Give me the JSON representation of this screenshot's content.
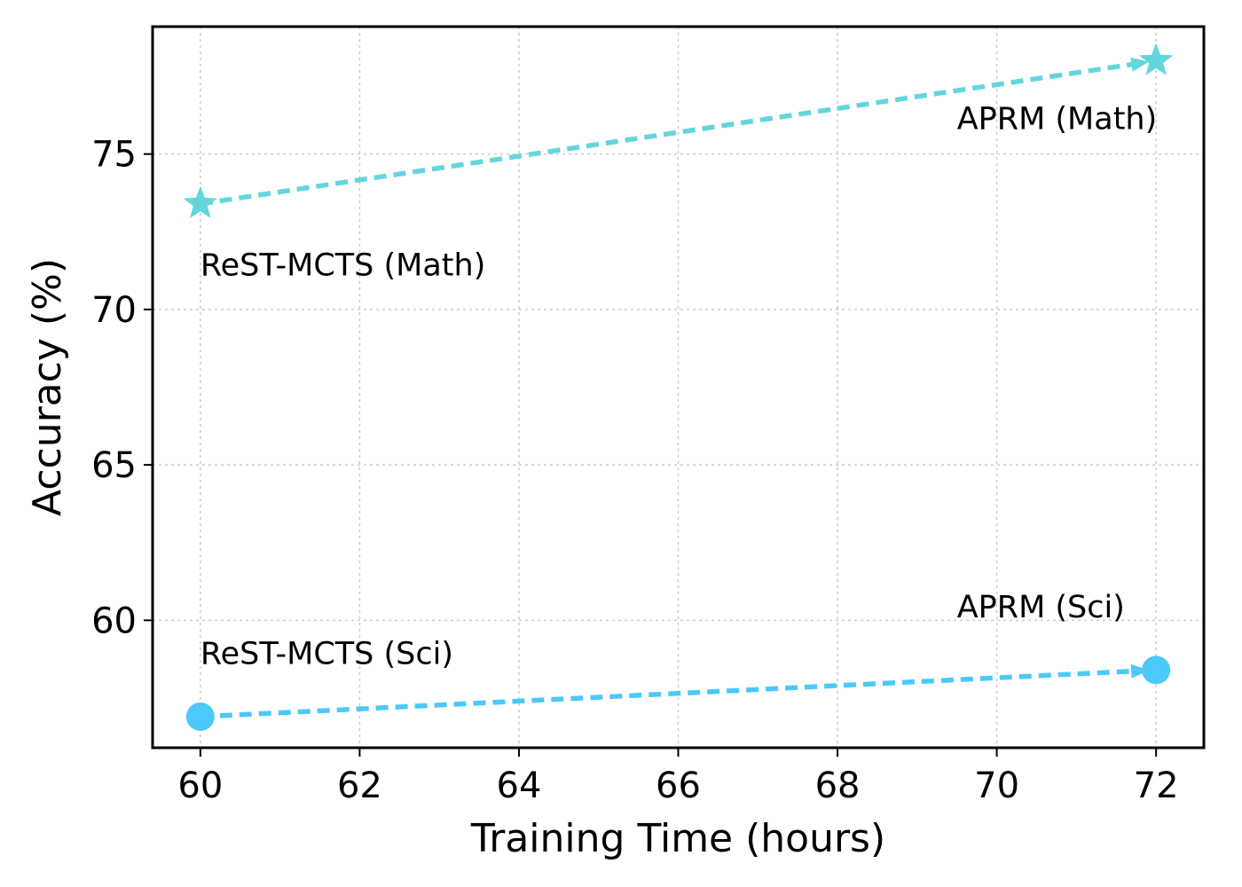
{
  "chart_data": {
    "type": "scatter",
    "title": "",
    "xlabel": "Training Time (hours)",
    "ylabel": "Accuracy (%)",
    "xlim": [
      59.4,
      72.6
    ],
    "ylim": [
      55.9,
      79.1
    ],
    "xticks": [
      60,
      62,
      64,
      66,
      68,
      70,
      72
    ],
    "yticks": [
      60,
      65,
      70,
      75
    ],
    "grid": true,
    "series": [
      {
        "name": "Math",
        "marker": "star",
        "color": "#63D6DC",
        "points": [
          {
            "x": 60,
            "y": 73.4,
            "label": "ReST-MCTS (Math)"
          },
          {
            "x": 72,
            "y": 78.0,
            "label": "APRM (Math)"
          }
        ]
      },
      {
        "name": "Sci",
        "marker": "circle",
        "color": "#4CC8FA",
        "points": [
          {
            "x": 60,
            "y": 56.9,
            "label": "ReST-MCTS (Sci)"
          },
          {
            "x": 72,
            "y": 58.4,
            "label": "APRM (Sci)"
          }
        ]
      }
    ],
    "annotations": [
      {
        "text": "ReST-MCTS (Math)",
        "x": 60.0,
        "y": 71.1
      },
      {
        "text": "APRM (Math)",
        "x": 69.5,
        "y": 75.8
      },
      {
        "text": "ReST-MCTS (Sci)",
        "x": 60.0,
        "y": 58.6
      },
      {
        "text": "APRM (Sci)",
        "x": 69.5,
        "y": 60.1
      }
    ]
  }
}
